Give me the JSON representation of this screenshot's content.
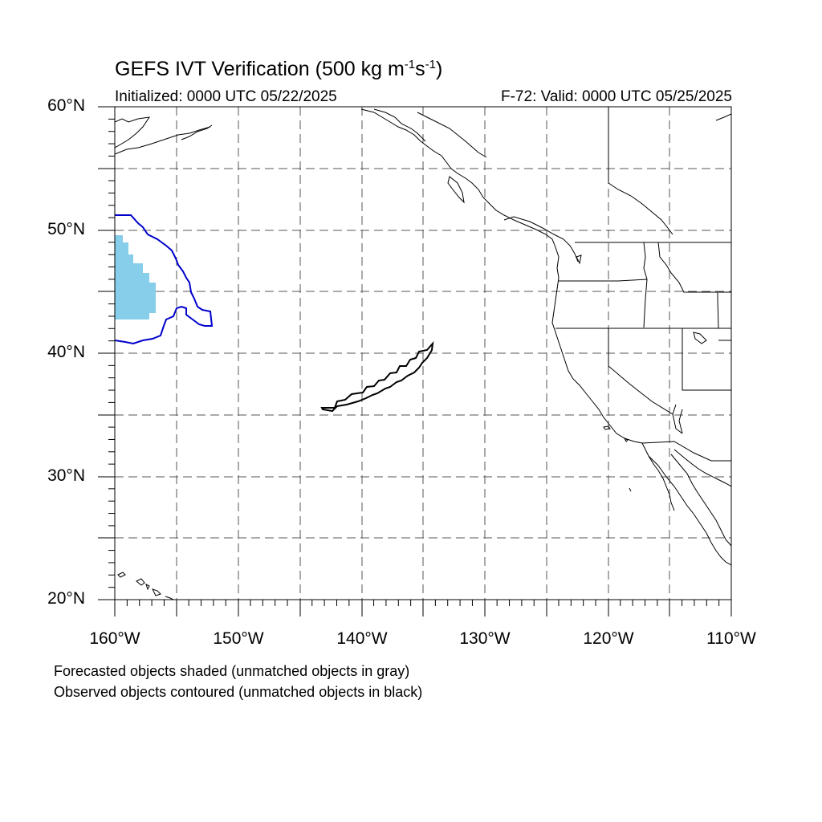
{
  "title_prefix": "GEFS IVT Verification (500 kg m",
  "title_sup1": "-1",
  "title_mid": "s",
  "title_sup2": "-1",
  "title_suffix": ")",
  "initialized": "Initialized: 0000 UTC 05/22/2025",
  "valid": "F-72: Valid: 0000 UTC 05/25/2025",
  "lat_labels": [
    "60°N",
    "50°N",
    "40°N",
    "30°N",
    "20°N"
  ],
  "lon_labels": [
    "160°W",
    "150°W",
    "140°W",
    "130°W",
    "120°W",
    "110°W"
  ],
  "footnote_1": "Forecasted objects shaded (unmatched objects in gray)",
  "footnote_2": "Observed objects contoured (unmatched objects in black)",
  "colors": {
    "forecast_matched_fill": "#87CEEB",
    "observed_matched_contour": "#0000CC",
    "observed_unmatched_contour": "#000000",
    "grid": "#555555"
  }
}
